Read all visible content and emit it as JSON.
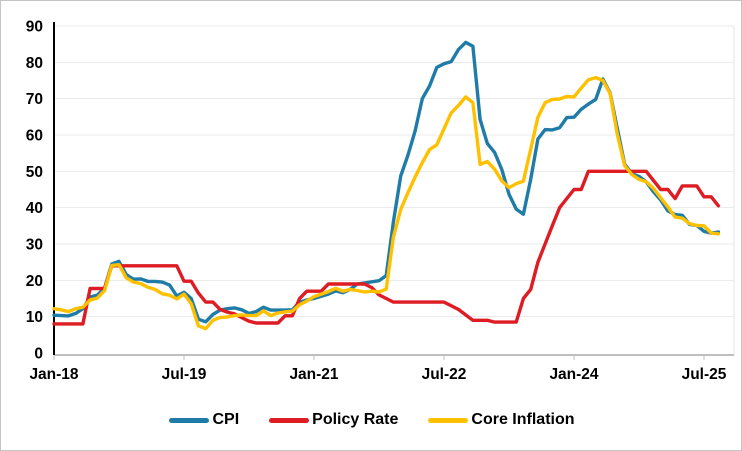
{
  "chart_data": {
    "type": "line",
    "x_frequency": "monthly",
    "x_start_label": "Jan-18",
    "n_points": 93,
    "x_tick_indices": [
      0,
      18,
      36,
      54,
      72,
      90
    ],
    "x_tick_labels": [
      "Jan-18",
      "Jul-19",
      "Jan-21",
      "Jul-22",
      "Jan-24",
      "Jul-25"
    ],
    "y_tick_labels": [
      "0",
      "10",
      "20",
      "30",
      "40",
      "50",
      "60",
      "70",
      "80",
      "90"
    ],
    "y_tick_values": [
      0,
      10,
      20,
      30,
      40,
      50,
      60,
      70,
      80,
      90
    ],
    "ylim": [
      0,
      90
    ],
    "grid": "horizontal",
    "legend_position": "bottom",
    "series": [
      {
        "name": "CPI",
        "color": "#1F7CA8",
        "values": [
          10.4,
          10.3,
          10.2,
          10.9,
          12.2,
          15.4,
          15.9,
          17.9,
          24.5,
          25.2,
          21.6,
          20.3,
          20.4,
          19.7,
          19.7,
          19.5,
          18.7,
          15.7,
          16.7,
          15.0,
          9.3,
          8.6,
          10.6,
          11.8,
          12.2,
          12.4,
          11.9,
          10.9,
          11.4,
          12.6,
          11.8,
          11.8,
          11.8,
          11.9,
          14.0,
          14.6,
          15.0,
          15.6,
          16.2,
          17.1,
          16.6,
          17.5,
          19.0,
          19.3,
          19.6,
          19.9,
          21.3,
          36.1,
          48.7,
          54.4,
          61.1,
          70.0,
          73.5,
          78.6,
          79.6,
          80.2,
          83.5,
          85.5,
          84.4,
          64.3,
          57.7,
          55.2,
          50.5,
          43.7,
          39.6,
          38.2,
          47.8,
          58.9,
          61.5,
          61.4,
          62.0,
          64.8,
          64.9,
          67.1,
          68.5,
          69.8,
          75.4,
          71.6,
          61.8,
          52.0,
          49.4,
          48.6,
          47.1,
          44.4,
          42.1,
          39.1,
          38.1,
          37.9,
          35.4,
          35.1,
          33.5,
          33.0,
          33.3
        ]
      },
      {
        "name": "Policy Rate",
        "color": "#DD1C23",
        "values": [
          8,
          8,
          8,
          8,
          8,
          17.75,
          17.75,
          17.75,
          24,
          24,
          24,
          24,
          24,
          24,
          24,
          24,
          24,
          24,
          19.75,
          19.75,
          16.5,
          14,
          14,
          12,
          11.25,
          10.75,
          9.75,
          8.75,
          8.25,
          8.25,
          8.25,
          8.25,
          10.25,
          10.25,
          15,
          17,
          17,
          17,
          19,
          19,
          19,
          19,
          19,
          19,
          18,
          16,
          15,
          14,
          14,
          14,
          14,
          14,
          14,
          14,
          14,
          13,
          12,
          10.5,
          9,
          9,
          9,
          8.5,
          8.5,
          8.5,
          8.5,
          15,
          17.5,
          25,
          30,
          35,
          40,
          42.5,
          45,
          45,
          50,
          50,
          50,
          50,
          50,
          50,
          50,
          50,
          50,
          47.5,
          45,
          45,
          42.5,
          46,
          46,
          46,
          43,
          43,
          40.5
        ]
      },
      {
        "name": "Core Inflation",
        "color": "#FFC000",
        "values": [
          12.2,
          11.9,
          11.4,
          12.2,
          12.6,
          14.6,
          15.1,
          17.2,
          24.1,
          24.3,
          20.7,
          19.5,
          19.1,
          18.1,
          17.5,
          16.3,
          15.9,
          14.9,
          16.2,
          13.6,
          7.5,
          6.7,
          9.0,
          9.8,
          9.9,
          10.3,
          10.5,
          10.3,
          10.3,
          11.6,
          10.3,
          11.0,
          11.3,
          11.5,
          13.3,
          14.3,
          15.5,
          16.2,
          16.9,
          17.8,
          17.0,
          17.5,
          17.2,
          16.8,
          17.0,
          16.8,
          17.6,
          31.9,
          39.5,
          44.1,
          48.4,
          52.4,
          56.0,
          57.3,
          61.7,
          66.1,
          68.1,
          70.5,
          68.9,
          51.9,
          52.7,
          50.6,
          47.4,
          45.5,
          46.6,
          47.3,
          56.1,
          64.9,
          68.9,
          69.8,
          69.9,
          70.6,
          70.5,
          72.9,
          75.2,
          75.8,
          75.0,
          71.4,
          60.2,
          51.6,
          49.1,
          47.8,
          47.1,
          45.3,
          42.7,
          40.2,
          37.4,
          37.1,
          35.6,
          35.1,
          35.0,
          33.0,
          32.8
        ]
      }
    ]
  },
  "colors": {
    "background": "#FFFFFF",
    "frame_border": "#C4C4C4",
    "gridline": "#EBEBEB",
    "plot_right_edge": "#E4E4E4",
    "y_axis": "#000000",
    "x_axis": "#BFBFBF",
    "text": "#000000"
  }
}
